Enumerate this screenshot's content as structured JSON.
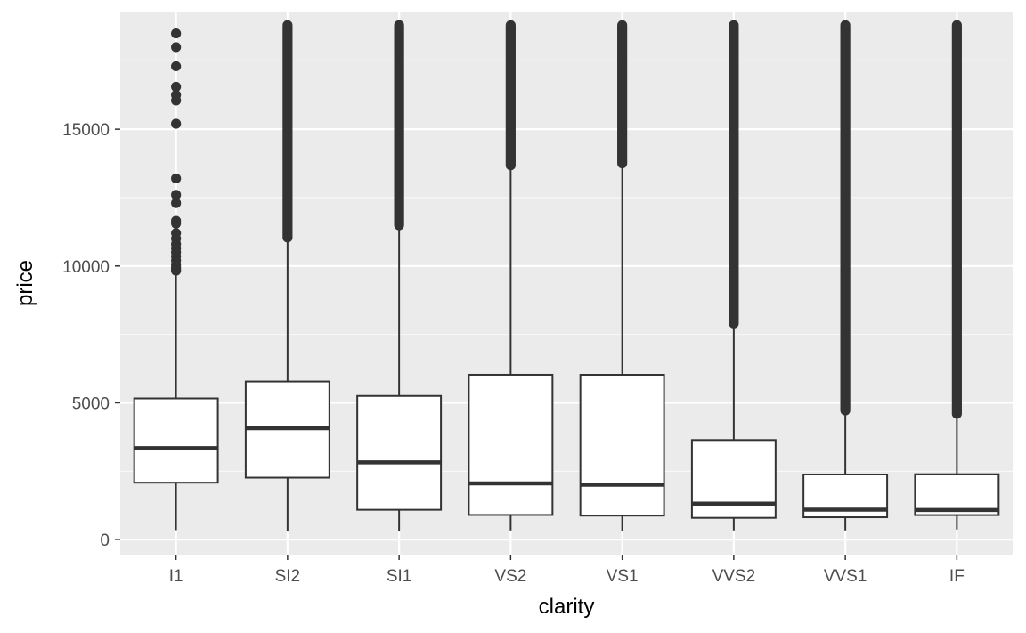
{
  "chart_data": {
    "type": "boxplot",
    "xlabel": "clarity",
    "ylabel": "price",
    "ylim": [
      -550,
      19300
    ],
    "yticks": [
      0,
      5000,
      10000,
      15000
    ],
    "ytick_labels": [
      "0",
      "5000",
      "10000",
      "15000"
    ],
    "grid": true,
    "categories": [
      "I1",
      "SI2",
      "SI1",
      "VS2",
      "VS1",
      "VVS2",
      "VVS1",
      "IF"
    ],
    "boxes": [
      {
        "category": "I1",
        "whisker_low": 345,
        "q1": 2080,
        "median": 3344,
        "q3": 5161,
        "whisker_high": 9780,
        "outliers": [
          9830,
          9870,
          9950,
          10050,
          10200,
          10350,
          10500,
          10650,
          10800,
          11000,
          11200,
          11550,
          11650,
          12300,
          12600,
          13200,
          15200,
          16050,
          16250,
          16550,
          17300,
          18000,
          18500
        ]
      },
      {
        "category": "SI2",
        "whisker_low": 326,
        "q1": 2264,
        "median": 4072,
        "q3": 5777,
        "whisker_high": 11040,
        "outlier_range": [
          11040,
          18800
        ]
      },
      {
        "category": "SI1",
        "whisker_low": 326,
        "q1": 1089,
        "median": 2822,
        "q3": 5250,
        "whisker_high": 11490,
        "outlier_range": [
          11490,
          18800
        ]
      },
      {
        "category": "VS2",
        "whisker_low": 334,
        "q1": 900,
        "median": 2054,
        "q3": 6024,
        "whisker_high": 13680,
        "outlier_range": [
          13680,
          18800
        ]
      },
      {
        "category": "VS1",
        "whisker_low": 327,
        "q1": 876,
        "median": 2005,
        "q3": 6023,
        "whisker_high": 13750,
        "outlier_range": [
          13750,
          18800
        ]
      },
      {
        "category": "VVS2",
        "whisker_low": 336,
        "q1": 794,
        "median": 1311,
        "q3": 3638,
        "whisker_high": 7900,
        "outlier_range": [
          7900,
          18800
        ]
      },
      {
        "category": "VVS1",
        "whisker_low": 336,
        "q1": 816,
        "median": 1093,
        "q3": 2379,
        "whisker_high": 4720,
        "outlier_range": [
          4720,
          18800
        ]
      },
      {
        "category": "IF",
        "whisker_low": 369,
        "q1": 895,
        "median": 1080,
        "q3": 2388,
        "whisker_high": 4600,
        "outlier_range": [
          4600,
          18800
        ]
      }
    ],
    "colors": {
      "panel": "#ebebeb",
      "grid_major": "#ffffff",
      "box_fill": "#ffffff",
      "box_line": "#333333",
      "outlier": "#333333"
    }
  }
}
